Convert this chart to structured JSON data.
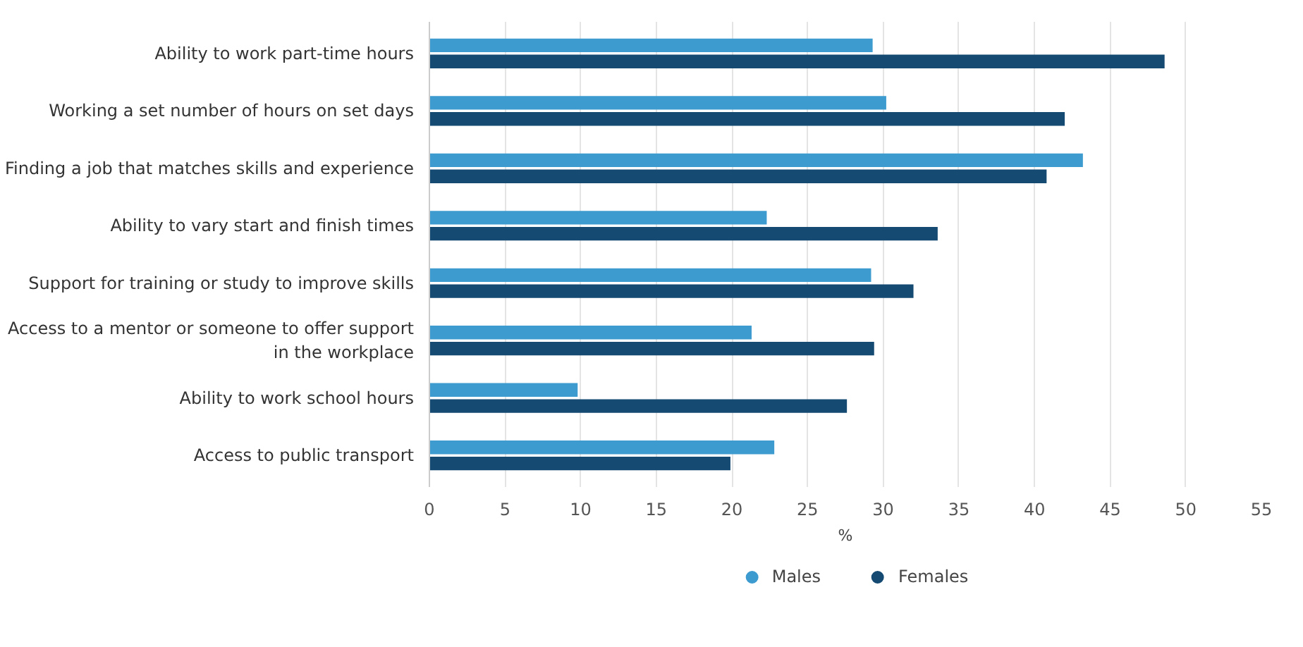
{
  "chart_data": {
    "type": "bar",
    "orientation": "horizontal",
    "xlabel": "%",
    "categories": [
      "Ability to work part-time hours",
      "Working a set number of hours on set days",
      "Finding a job that matches skills and experience",
      "Ability to vary start and finish times",
      "Support for training or study to improve skills",
      "Access to a mentor or someone to offer support\nin the workplace",
      "Ability to work school hours",
      "Access to public transport"
    ],
    "series": [
      {
        "name": "Males",
        "color": "#3d9bd0",
        "values": [
          29.3,
          30.2,
          43.2,
          22.3,
          29.2,
          21.3,
          9.8,
          22.8
        ]
      },
      {
        "name": "Females",
        "color": "#154a72",
        "values": [
          48.6,
          42.0,
          40.8,
          33.6,
          32.0,
          29.4,
          27.6,
          19.9
        ]
      }
    ],
    "xlim": [
      0,
      55
    ],
    "xticks": [
      0,
      5,
      10,
      15,
      20,
      25,
      30,
      35,
      40,
      45,
      50,
      55
    ],
    "grid": "x",
    "legend": "bottom"
  }
}
